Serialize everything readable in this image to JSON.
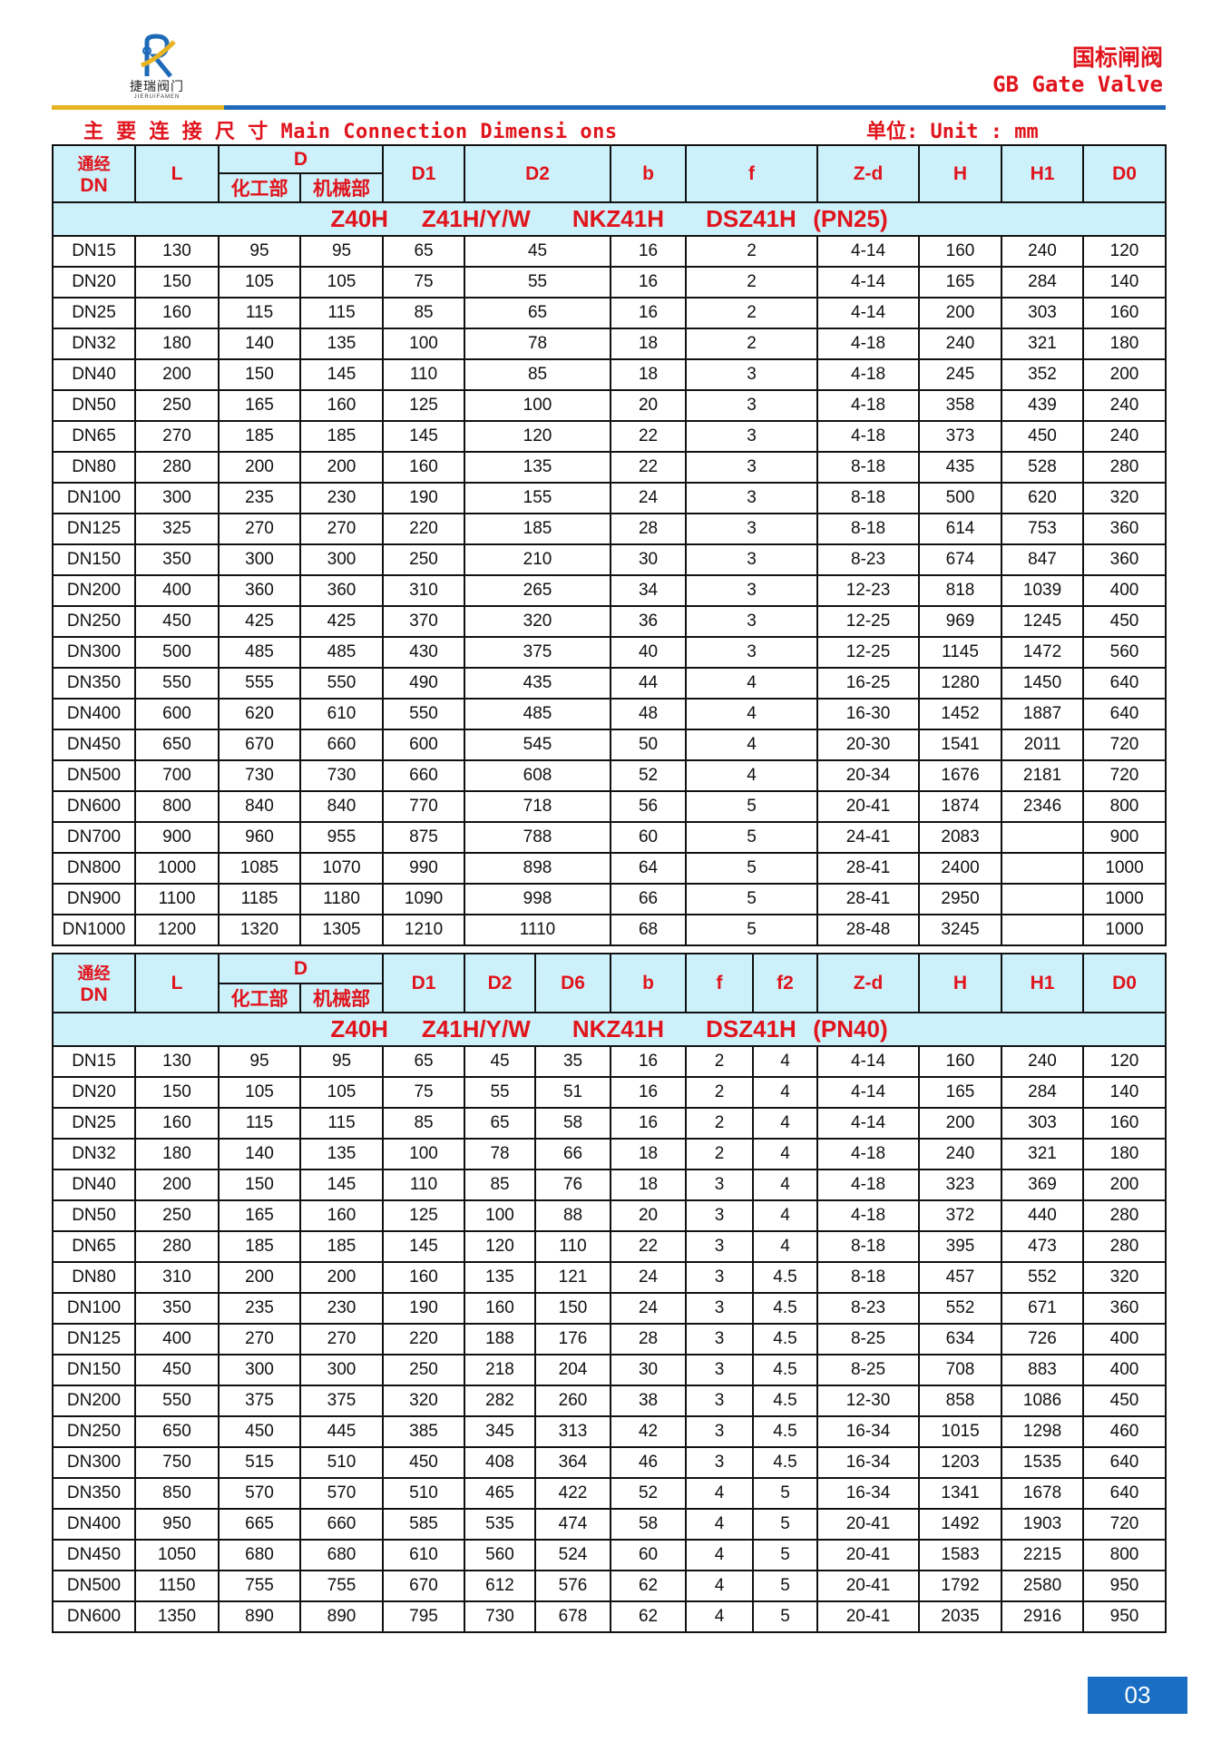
{
  "brand": {
    "name_cn": "捷瑞阀门",
    "name_en": "JIERUIFAMEN",
    "colors": {
      "blue": "#1e6ab8",
      "orange": "#e8b320"
    }
  },
  "header": {
    "title_cn": "国标闸阀",
    "title_en": "GB Gate Valve"
  },
  "section": {
    "title": "主 要 连 接 尺 寸 Main Connection Dimensi ons",
    "unit": "单位: Unit : mm"
  },
  "table1": {
    "headers": {
      "dn_cn": "通经",
      "dn": "DN",
      "L": "L",
      "D": "D",
      "D_chem": "化工部",
      "D_mech": "机械部",
      "D1": "D1",
      "D2": "D2",
      "b": "b",
      "f": "f",
      "Zd": "Z-d",
      "H": "H",
      "H1": "H1",
      "D0": "D0"
    },
    "group_title": "Z40H    Z41H/Y/W     NKZ41H     DSZ41H  (PN25)",
    "rows": [
      [
        "DN15",
        "130",
        "95",
        "95",
        "65",
        "45",
        "16",
        "2",
        "4-14",
        "160",
        "240",
        "120"
      ],
      [
        "DN20",
        "150",
        "105",
        "105",
        "75",
        "55",
        "16",
        "2",
        "4-14",
        "165",
        "284",
        "140"
      ],
      [
        "DN25",
        "160",
        "115",
        "115",
        "85",
        "65",
        "16",
        "2",
        "4-14",
        "200",
        "303",
        "160"
      ],
      [
        "DN32",
        "180",
        "140",
        "135",
        "100",
        "78",
        "18",
        "2",
        "4-18",
        "240",
        "321",
        "180"
      ],
      [
        "DN40",
        "200",
        "150",
        "145",
        "110",
        "85",
        "18",
        "3",
        "4-18",
        "245",
        "352",
        "200"
      ],
      [
        "DN50",
        "250",
        "165",
        "160",
        "125",
        "100",
        "20",
        "3",
        "4-18",
        "358",
        "439",
        "240"
      ],
      [
        "DN65",
        "270",
        "185",
        "185",
        "145",
        "120",
        "22",
        "3",
        "4-18",
        "373",
        "450",
        "240"
      ],
      [
        "DN80",
        "280",
        "200",
        "200",
        "160",
        "135",
        "22",
        "3",
        "8-18",
        "435",
        "528",
        "280"
      ],
      [
        "DN100",
        "300",
        "235",
        "230",
        "190",
        "155",
        "24",
        "3",
        "8-18",
        "500",
        "620",
        "320"
      ],
      [
        "DN125",
        "325",
        "270",
        "270",
        "220",
        "185",
        "28",
        "3",
        "8-18",
        "614",
        "753",
        "360"
      ],
      [
        "DN150",
        "350",
        "300",
        "300",
        "250",
        "210",
        "30",
        "3",
        "8-23",
        "674",
        "847",
        "360"
      ],
      [
        "DN200",
        "400",
        "360",
        "360",
        "310",
        "265",
        "34",
        "3",
        "12-23",
        "818",
        "1039",
        "400"
      ],
      [
        "DN250",
        "450",
        "425",
        "425",
        "370",
        "320",
        "36",
        "3",
        "12-25",
        "969",
        "1245",
        "450"
      ],
      [
        "DN300",
        "500",
        "485",
        "485",
        "430",
        "375",
        "40",
        "3",
        "12-25",
        "1145",
        "1472",
        "560"
      ],
      [
        "DN350",
        "550",
        "555",
        "550",
        "490",
        "435",
        "44",
        "4",
        "16-25",
        "1280",
        "1450",
        "640"
      ],
      [
        "DN400",
        "600",
        "620",
        "610",
        "550",
        "485",
        "48",
        "4",
        "16-30",
        "1452",
        "1887",
        "640"
      ],
      [
        "DN450",
        "650",
        "670",
        "660",
        "600",
        "545",
        "50",
        "4",
        "20-30",
        "1541",
        "2011",
        "720"
      ],
      [
        "DN500",
        "700",
        "730",
        "730",
        "660",
        "608",
        "52",
        "4",
        "20-34",
        "1676",
        "2181",
        "720"
      ],
      [
        "DN600",
        "800",
        "840",
        "840",
        "770",
        "718",
        "56",
        "5",
        "20-41",
        "1874",
        "2346",
        "800"
      ],
      [
        "DN700",
        "900",
        "960",
        "955",
        "875",
        "788",
        "60",
        "5",
        "24-41",
        "2083",
        "",
        "900"
      ],
      [
        "DN800",
        "1000",
        "1085",
        "1070",
        "990",
        "898",
        "64",
        "5",
        "28-41",
        "2400",
        "",
        "1000"
      ],
      [
        "DN900",
        "1100",
        "1185",
        "1180",
        "1090",
        "998",
        "66",
        "5",
        "28-41",
        "2950",
        "",
        "1000"
      ],
      [
        "DN1000",
        "1200",
        "1320",
        "1305",
        "1210",
        "1110",
        "68",
        "5",
        "28-48",
        "3245",
        "",
        "1000"
      ]
    ]
  },
  "table2": {
    "headers": {
      "dn_cn": "通经",
      "dn": "DN",
      "L": "L",
      "D": "D",
      "D_chem": "化工部",
      "D_mech": "机械部",
      "D1": "D1",
      "D2": "D2",
      "D6": "D6",
      "b": "b",
      "f": "f",
      "f2": "f2",
      "Zd": "Z-d",
      "H": "H",
      "H1": "H1",
      "D0": "D0"
    },
    "group_title": "Z40H    Z41H/Y/W     NKZ41H     DSZ41H  (PN40)",
    "rows": [
      [
        "DN15",
        "130",
        "95",
        "95",
        "65",
        "45",
        "35",
        "16",
        "2",
        "4",
        "4-14",
        "160",
        "240",
        "120"
      ],
      [
        "DN20",
        "150",
        "105",
        "105",
        "75",
        "55",
        "51",
        "16",
        "2",
        "4",
        "4-14",
        "165",
        "284",
        "140"
      ],
      [
        "DN25",
        "160",
        "115",
        "115",
        "85",
        "65",
        "58",
        "16",
        "2",
        "4",
        "4-14",
        "200",
        "303",
        "160"
      ],
      [
        "DN32",
        "180",
        "140",
        "135",
        "100",
        "78",
        "66",
        "18",
        "2",
        "4",
        "4-18",
        "240",
        "321",
        "180"
      ],
      [
        "DN40",
        "200",
        "150",
        "145",
        "110",
        "85",
        "76",
        "18",
        "3",
        "4",
        "4-18",
        "323",
        "369",
        "200"
      ],
      [
        "DN50",
        "250",
        "165",
        "160",
        "125",
        "100",
        "88",
        "20",
        "3",
        "4",
        "4-18",
        "372",
        "440",
        "280"
      ],
      [
        "DN65",
        "280",
        "185",
        "185",
        "145",
        "120",
        "110",
        "22",
        "3",
        "4",
        "8-18",
        "395",
        "473",
        "280"
      ],
      [
        "DN80",
        "310",
        "200",
        "200",
        "160",
        "135",
        "121",
        "24",
        "3",
        "4.5",
        "8-18",
        "457",
        "552",
        "320"
      ],
      [
        "DN100",
        "350",
        "235",
        "230",
        "190",
        "160",
        "150",
        "24",
        "3",
        "4.5",
        "8-23",
        "552",
        "671",
        "360"
      ],
      [
        "DN125",
        "400",
        "270",
        "270",
        "220",
        "188",
        "176",
        "28",
        "3",
        "4.5",
        "8-25",
        "634",
        "726",
        "400"
      ],
      [
        "DN150",
        "450",
        "300",
        "300",
        "250",
        "218",
        "204",
        "30",
        "3",
        "4.5",
        "8-25",
        "708",
        "883",
        "400"
      ],
      [
        "DN200",
        "550",
        "375",
        "375",
        "320",
        "282",
        "260",
        "38",
        "3",
        "4.5",
        "12-30",
        "858",
        "1086",
        "450"
      ],
      [
        "DN250",
        "650",
        "450",
        "445",
        "385",
        "345",
        "313",
        "42",
        "3",
        "4.5",
        "16-34",
        "1015",
        "1298",
        "460"
      ],
      [
        "DN300",
        "750",
        "515",
        "510",
        "450",
        "408",
        "364",
        "46",
        "3",
        "4.5",
        "16-34",
        "1203",
        "1535",
        "640"
      ],
      [
        "DN350",
        "850",
        "570",
        "570",
        "510",
        "465",
        "422",
        "52",
        "4",
        "5",
        "16-34",
        "1341",
        "1678",
        "640"
      ],
      [
        "DN400",
        "950",
        "665",
        "660",
        "585",
        "535",
        "474",
        "58",
        "4",
        "5",
        "20-41",
        "1492",
        "1903",
        "720"
      ],
      [
        "DN450",
        "1050",
        "680",
        "680",
        "610",
        "560",
        "524",
        "60",
        "4",
        "5",
        "20-41",
        "1583",
        "2215",
        "800"
      ],
      [
        "DN500",
        "1150",
        "755",
        "755",
        "670",
        "612",
        "576",
        "62",
        "4",
        "5",
        "20-41",
        "1792",
        "2580",
        "950"
      ],
      [
        "DN600",
        "1350",
        "890",
        "890",
        "795",
        "730",
        "678",
        "62",
        "4",
        "5",
        "20-41",
        "2035",
        "2916",
        "950"
      ]
    ]
  },
  "footer": {
    "page_number": "03"
  }
}
